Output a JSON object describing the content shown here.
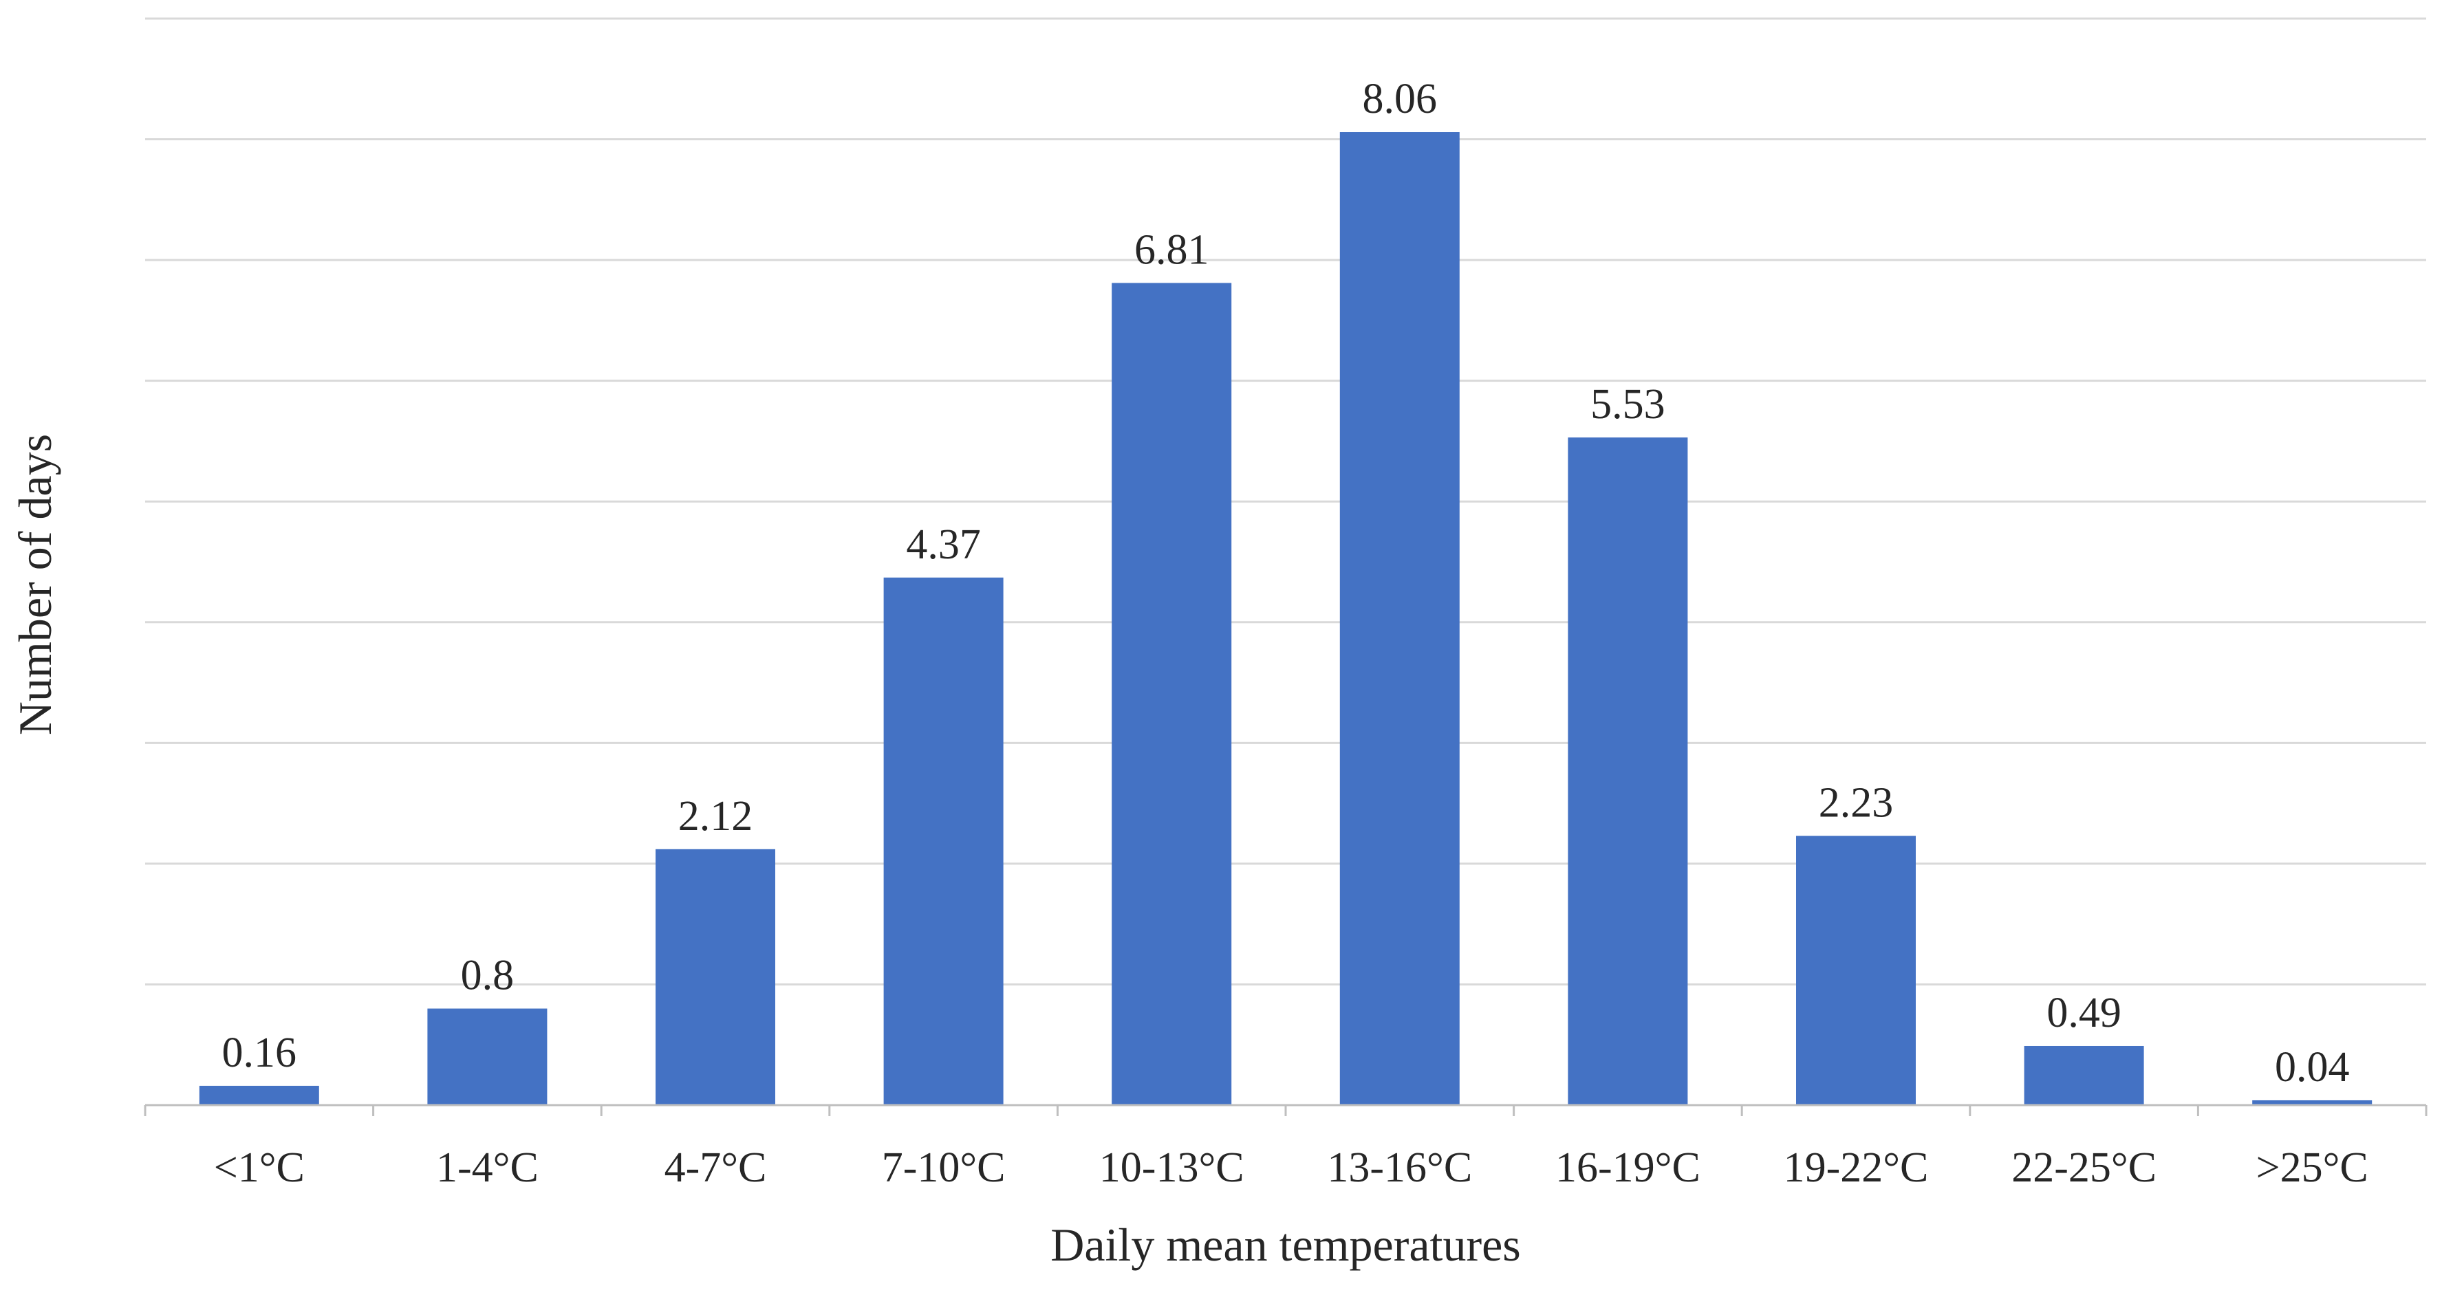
{
  "chart_data": {
    "type": "bar",
    "title": "",
    "xlabel": "Daily mean temperatures",
    "ylabel": "Number of days",
    "categories": [
      "<1°C",
      "1-4°C",
      "4-7°C",
      "7-10°C",
      "10-13°C",
      "13-16°C",
      "16-19°C",
      "19-22°C",
      "22-25°C",
      ">25°C"
    ],
    "values": [
      0.16,
      0.8,
      2.12,
      4.37,
      6.81,
      8.06,
      5.53,
      2.23,
      0.49,
      0.04
    ],
    "data_labels": [
      "0.16",
      "0.8",
      "2.12",
      "4.37",
      "6.81",
      "8.06",
      "5.53",
      "2.23",
      "0.49",
      "0.04"
    ],
    "ylim": [
      0,
      9
    ],
    "ytick_step": 1,
    "y_tick_labels_shown": false,
    "grid": true,
    "legend": "none",
    "colors": {
      "bar": "#4472C4",
      "grid": "#D9D9D9",
      "axis": "#BFBFBF"
    }
  }
}
